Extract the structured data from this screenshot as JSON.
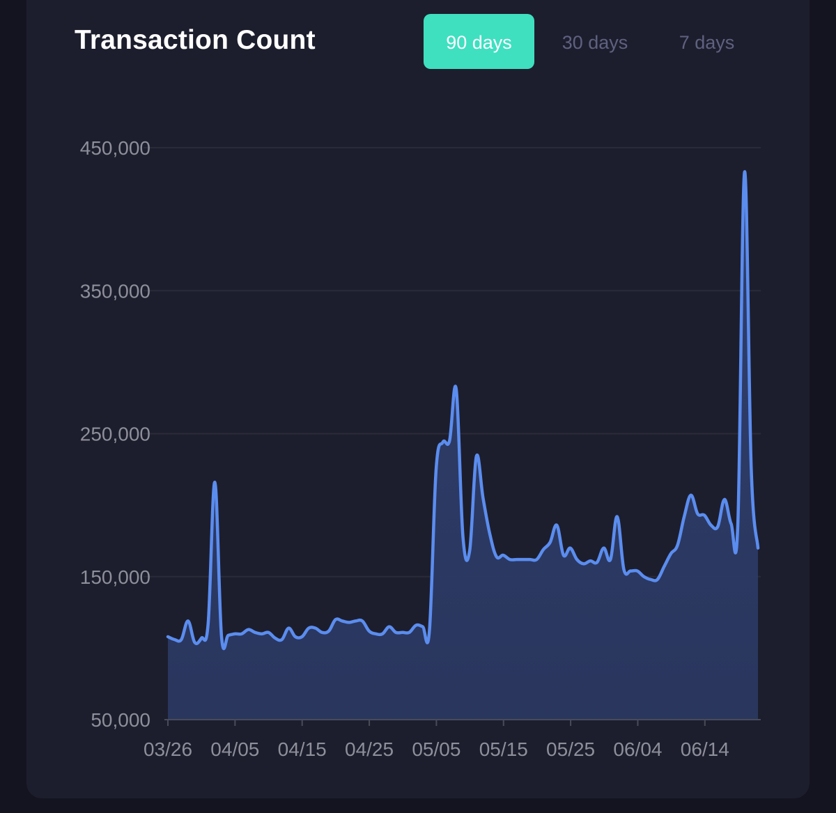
{
  "header": {
    "title": "Transaction Count",
    "tabs": [
      {
        "label": "90 days",
        "active": true
      },
      {
        "label": "30 days",
        "active": false
      },
      {
        "label": "7 days",
        "active": false
      }
    ]
  },
  "colors": {
    "background": "#1d1e2d",
    "accent": "#3ee0c0",
    "line": "#5b8def",
    "area": "#2c3a62",
    "grid": "#2a2b39",
    "tick_text": "#8e8f9b"
  },
  "chart_data": {
    "type": "area",
    "title": "Transaction Count",
    "xlabel": "",
    "ylabel": "",
    "ylim": [
      50000,
      450000
    ],
    "y_ticks": [
      "450,000",
      "350,000",
      "250,000",
      "150,000",
      "50,000"
    ],
    "x_ticks": [
      "03/26",
      "04/05",
      "04/15",
      "04/25",
      "05/05",
      "05/15",
      "05/25",
      "06/04",
      "06/14"
    ],
    "grid": true,
    "legend": "none",
    "series": [
      {
        "x": [
          "03/26",
          "03/27",
          "03/28",
          "03/29",
          "03/30",
          "03/31",
          "04/01",
          "04/02",
          "04/03",
          "04/04",
          "04/05",
          "04/06",
          "04/07",
          "04/08",
          "04/09",
          "04/10",
          "04/11",
          "04/12",
          "04/13",
          "04/14",
          "04/15",
          "04/16",
          "04/17",
          "04/18",
          "04/19",
          "04/20",
          "04/21",
          "04/22",
          "04/23",
          "04/24",
          "04/25",
          "04/26",
          "04/27",
          "04/28",
          "04/29",
          "04/30",
          "05/01",
          "05/02",
          "05/03",
          "05/04",
          "05/05",
          "05/06",
          "05/07",
          "05/08",
          "05/09",
          "05/10",
          "05/11",
          "05/12",
          "05/13",
          "05/14",
          "05/15",
          "05/16",
          "05/17",
          "05/18",
          "05/19",
          "05/20",
          "05/21",
          "05/22",
          "05/23",
          "05/24",
          "05/25",
          "05/26",
          "05/27",
          "05/28",
          "05/29",
          "05/30",
          "05/31",
          "06/01",
          "06/02",
          "06/03",
          "06/04",
          "06/05",
          "06/06",
          "06/07",
          "06/08",
          "06/09",
          "06/10",
          "06/11",
          "06/12",
          "06/13",
          "06/14",
          "06/15",
          "06/16",
          "06/17",
          "06/18",
          "06/19",
          "06/20",
          "06/21",
          "06/22"
        ],
        "values": [
          108000,
          106000,
          106000,
          119000,
          104000,
          107000,
          117000,
          216000,
          108000,
          109000,
          110000,
          110000,
          113000,
          111000,
          110000,
          111000,
          107000,
          106000,
          114000,
          108000,
          108000,
          114000,
          114000,
          111000,
          112000,
          120000,
          119000,
          118000,
          119000,
          119000,
          112000,
          110000,
          110000,
          115000,
          111000,
          111000,
          111000,
          116000,
          115000,
          112000,
          225000,
          244000,
          245000,
          281000,
          178000,
          168000,
          234000,
          205000,
          180000,
          164000,
          165000,
          162000,
          162000,
          162000,
          162000,
          162000,
          169000,
          174000,
          186000,
          165000,
          170000,
          162000,
          159000,
          161000,
          160000,
          170000,
          162000,
          192000,
          155000,
          154000,
          154000,
          150000,
          148000,
          148000,
          157000,
          166000,
          172000,
          192000,
          207000,
          194000,
          193000,
          186000,
          185000,
          204000,
          187000,
          187000,
          433000,
          225000,
          170000
        ]
      }
    ]
  }
}
